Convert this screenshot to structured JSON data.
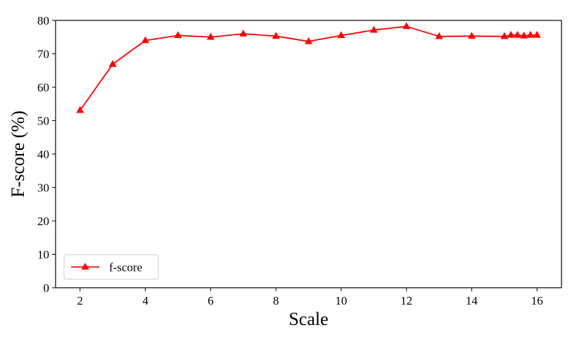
{
  "chart_data": {
    "type": "line",
    "title": "",
    "xlabel": "Scale",
    "ylabel": "F-score (%)",
    "xlim": [
      1.25,
      16.75
    ],
    "ylim": [
      0,
      80
    ],
    "xticks": [
      2,
      4,
      6,
      8,
      10,
      12,
      14,
      16
    ],
    "yticks": [
      0,
      10,
      20,
      30,
      40,
      50,
      60,
      70,
      80
    ],
    "grid": false,
    "legend_position": "lower-left",
    "series": [
      {
        "name": "f-score",
        "color": "#ff0000",
        "marker": "triangle-up",
        "x": [
          2,
          3,
          4,
          5,
          6,
          7,
          8,
          9,
          10,
          11,
          12,
          13,
          14,
          15,
          15.2,
          15.4,
          15.6,
          15.8,
          16
        ],
        "y": [
          53.1,
          66.9,
          74.0,
          75.5,
          75.0,
          76.0,
          75.3,
          73.7,
          75.5,
          77.1,
          78.2,
          75.2,
          75.3,
          75.2,
          75.6,
          75.6,
          75.4,
          75.6,
          75.6
        ]
      }
    ]
  }
}
